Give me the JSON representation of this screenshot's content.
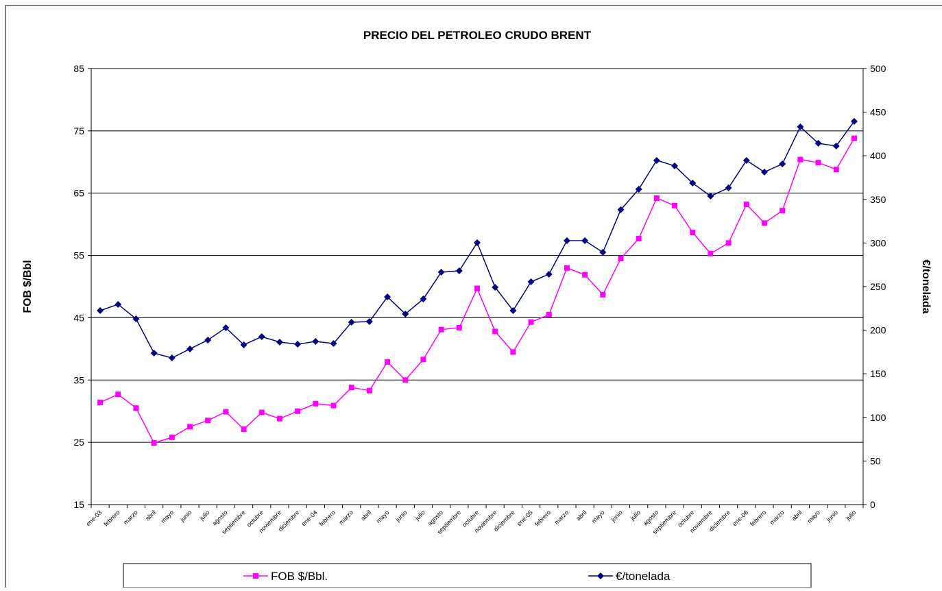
{
  "chart_data": {
    "type": "line",
    "title": "PRECIO DEL PETROLEO CRUDO BRENT",
    "y_label": "FOB $/Bbl",
    "y2_label": "€/tonelada",
    "categories": [
      "ene-03",
      "febrero",
      "marzo",
      "abril",
      "mayo",
      "junio",
      "julio",
      "agosto",
      "septiembre",
      "octubre",
      "noviembre",
      "diciembre",
      "ene-04",
      "febrero",
      "marzo",
      "abril",
      "mayo",
      "junio",
      "julio",
      "agosto",
      "septiembre",
      "octubre",
      "noviembre",
      "diciembre",
      "ene-05",
      "febrero",
      "marzo",
      "abril",
      "mayo",
      "junio",
      "julio",
      "agosto",
      "septiembre",
      "octubre",
      "noviembre",
      "diciembre",
      "ene-06",
      "febrero",
      "marzo",
      "abril",
      "mayo",
      "junio",
      "julio"
    ],
    "series": [
      {
        "name": "FOB $/Bbl.",
        "color": "#ff00ff",
        "marker": "square",
        "values": [
          31.4,
          32.7,
          30.5,
          24.9,
          25.8,
          27.5,
          28.5,
          29.9,
          27.1,
          29.8,
          28.8,
          30.0,
          31.2,
          30.9,
          33.8,
          33.3,
          37.9,
          35.0,
          38.3,
          43.1,
          43.4,
          49.7,
          42.8,
          39.5,
          44.3,
          45.5,
          53.0,
          51.9,
          48.7,
          54.5,
          57.7,
          64.2,
          63.0,
          58.7,
          55.3,
          57.0,
          63.2,
          60.2,
          62.2,
          70.4,
          69.9,
          68.8,
          73.8
        ]
      },
      {
        "name": "€/tonelada",
        "color": "#000080",
        "marker": "diamond",
        "axis": "y2",
        "values": [
          222.5,
          229.6,
          213,
          173.7,
          168.2,
          178.5,
          188.7,
          202.8,
          183.2,
          192.6,
          186.3,
          184,
          187.1,
          184.7,
          209.1,
          209.9,
          238.2,
          218.6,
          235.8,
          266.5,
          268.1,
          300.3,
          249.2,
          222.5,
          255.5,
          264.2,
          302.7,
          302.7,
          289.3,
          338.1,
          361.6,
          394.7,
          388.4,
          368.7,
          353.8,
          363.2,
          394.7,
          381.3,
          390.7,
          433.2,
          414.3,
          411.2,
          439.5
        ]
      }
    ],
    "ylim": [
      15,
      85
    ],
    "yticks": [
      15,
      25,
      35,
      45,
      55,
      65,
      75,
      85
    ],
    "y2lim": [
      0,
      500
    ],
    "y2ticks": [
      0,
      50,
      100,
      150,
      200,
      250,
      300,
      350,
      400,
      450,
      500
    ],
    "grid": true,
    "legend": "bottom"
  }
}
